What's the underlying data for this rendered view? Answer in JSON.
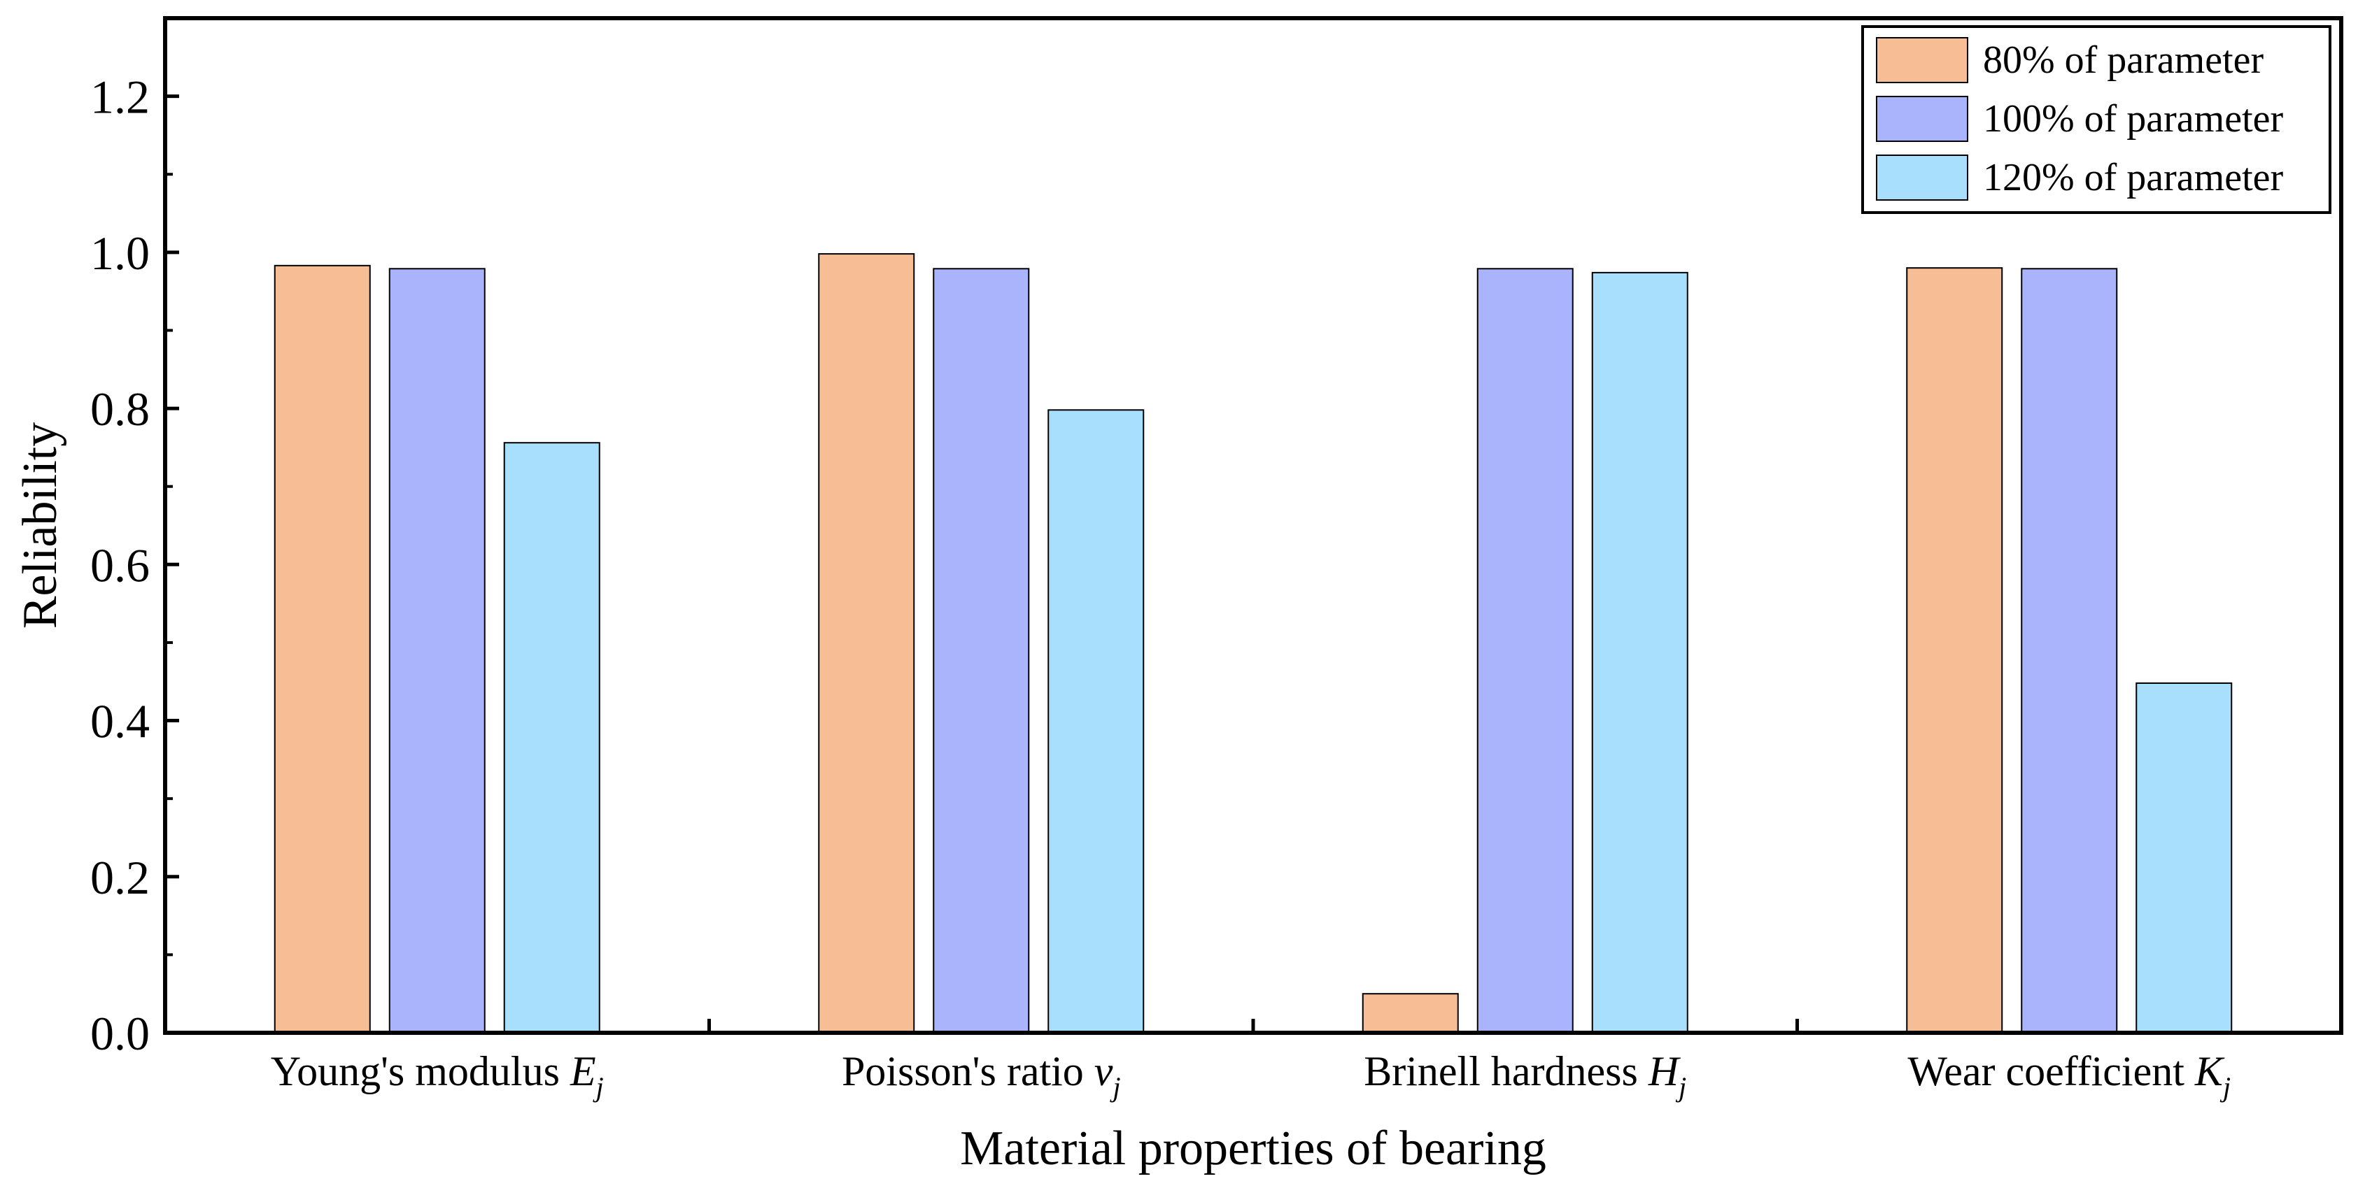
{
  "chart_data": {
    "type": "bar",
    "xlabel": "Material properties of bearing",
    "ylabel": "Reliability",
    "ylim": [
      0,
      1.3
    ],
    "yticks": [
      {
        "value": 0.0,
        "label": "0.0"
      },
      {
        "value": 0.2,
        "label": "0.2"
      },
      {
        "value": 0.4,
        "label": "0.4"
      },
      {
        "value": 0.6,
        "label": "0.6"
      },
      {
        "value": 0.8,
        "label": "0.8"
      },
      {
        "value": 1.0,
        "label": "1.0"
      },
      {
        "value": 1.2,
        "label": "1.2"
      }
    ],
    "categories": [
      {
        "text": "Young's modulus ",
        "symbol": "E",
        "sub": "j"
      },
      {
        "text": "Poisson's ratio ",
        "symbol": "v",
        "sub": "j"
      },
      {
        "text": "Brinell hardness ",
        "symbol": "H",
        "sub": "j"
      },
      {
        "text": "Wear coefficient ",
        "symbol": "K",
        "sub": "j"
      }
    ],
    "series": [
      {
        "name": "80% of parameter",
        "color": "#f7be96",
        "values": [
          0.983,
          0.998,
          0.05,
          0.98
        ]
      },
      {
        "name": "100% of parameter",
        "color": "#aab4fd",
        "values": [
          0.979,
          0.979,
          0.979,
          0.979
        ]
      },
      {
        "name": "120% of parameter",
        "color": "#a7dffd",
        "values": [
          0.756,
          0.798,
          0.974,
          0.448
        ]
      }
    ],
    "legend_position": "top-right",
    "grid": false
  }
}
